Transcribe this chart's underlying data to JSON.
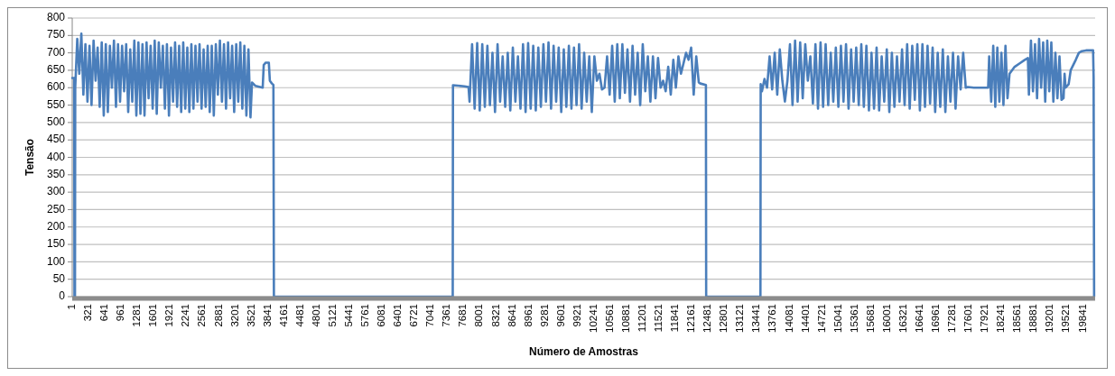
{
  "chart_data": {
    "type": "line",
    "xlabel": "Número de Amostras",
    "ylabel": "Tensão",
    "xlim": [
      1,
      20080
    ],
    "ylim": [
      0,
      800
    ],
    "yticks": [
      0,
      50,
      100,
      150,
      200,
      250,
      300,
      350,
      400,
      450,
      500,
      550,
      600,
      650,
      700,
      750,
      800
    ],
    "xticks": [
      1,
      321,
      641,
      961,
      1281,
      1601,
      1921,
      2241,
      2561,
      2881,
      3201,
      3521,
      3841,
      4161,
      4481,
      4801,
      5121,
      5441,
      5761,
      6081,
      6401,
      6721,
      7041,
      7361,
      7681,
      8001,
      8321,
      8641,
      8961,
      9281,
      9601,
      9921,
      10241,
      10561,
      10881,
      11201,
      11521,
      11841,
      12161,
      12481,
      12801,
      13121,
      13441,
      13761,
      14081,
      14401,
      14721,
      15041,
      15361,
      15681,
      16001,
      16321,
      16641,
      16961,
      17281,
      17601,
      17921,
      18241,
      18561,
      18881,
      19201,
      19521,
      19841
    ],
    "grid": "y",
    "series": [
      {
        "color": "#4a7ebb",
        "x": [
          1,
          40,
          45,
          55,
          60,
          100,
          140,
          180,
          220,
          260,
          300,
          340,
          380,
          420,
          460,
          500,
          540,
          580,
          620,
          660,
          700,
          740,
          780,
          820,
          860,
          900,
          940,
          980,
          1020,
          1060,
          1100,
          1140,
          1180,
          1220,
          1260,
          1300,
          1340,
          1380,
          1420,
          1460,
          1500,
          1540,
          1580,
          1620,
          1660,
          1700,
          1740,
          1780,
          1820,
          1860,
          1900,
          1940,
          1980,
          2020,
          2060,
          2100,
          2140,
          2180,
          2220,
          2260,
          2300,
          2340,
          2380,
          2420,
          2460,
          2500,
          2540,
          2580,
          2620,
          2660,
          2700,
          2740,
          2780,
          2820,
          2860,
          2900,
          2940,
          2980,
          3020,
          3060,
          3100,
          3140,
          3180,
          3220,
          3260,
          3300,
          3340,
          3380,
          3420,
          3460,
          3500,
          3530,
          3600,
          3740,
          3760,
          3800,
          3860,
          3880,
          3920,
          3950,
          3960,
          7470,
          7475,
          7700,
          7780,
          7800,
          7850,
          7900,
          7950,
          8000,
          8050,
          8100,
          8150,
          8200,
          8250,
          8300,
          8350,
          8400,
          8450,
          8500,
          8550,
          8600,
          8650,
          8700,
          8750,
          8800,
          8850,
          8900,
          8950,
          9000,
          9050,
          9100,
          9150,
          9200,
          9250,
          9300,
          9350,
          9400,
          9450,
          9500,
          9550,
          9600,
          9650,
          9700,
          9750,
          9800,
          9850,
          9900,
          9950,
          10000,
          10050,
          10100,
          10150,
          10200,
          10250,
          10300,
          10350,
          10400,
          10450,
          10500,
          10550,
          10600,
          10650,
          10700,
          10750,
          10800,
          10850,
          10900,
          10950,
          11000,
          11050,
          11100,
          11150,
          11200,
          11250,
          11300,
          11350,
          11400,
          11450,
          11500,
          11550,
          11600,
          11650,
          11700,
          11750,
          11800,
          11850,
          11900,
          11950,
          12000,
          12050,
          12100,
          12150,
          12200,
          12250,
          12300,
          12330,
          12440,
          12445,
          13510,
          13515,
          13540,
          13590,
          13640,
          13690,
          13740,
          13790,
          13840,
          13890,
          13940,
          13990,
          14040,
          14090,
          14140,
          14190,
          14240,
          14290,
          14340,
          14390,
          14440,
          14490,
          14540,
          14590,
          14640,
          14690,
          14740,
          14790,
          14840,
          14890,
          14940,
          14990,
          15040,
          15090,
          15140,
          15190,
          15240,
          15290,
          15340,
          15390,
          15440,
          15490,
          15540,
          15590,
          15640,
          15690,
          15740,
          15790,
          15840,
          15890,
          15940,
          15990,
          16040,
          16090,
          16140,
          16190,
          16240,
          16290,
          16340,
          16390,
          16440,
          16490,
          16540,
          16590,
          16640,
          16690,
          16740,
          16790,
          16840,
          16890,
          16940,
          16990,
          17040,
          17090,
          17140,
          17190,
          17240,
          17290,
          17340,
          17390,
          17440,
          17490,
          17540,
          17580,
          17700,
          17980,
          18000,
          18040,
          18080,
          18120,
          18160,
          18200,
          18240,
          18280,
          18320,
          18360,
          18400,
          18500,
          18600,
          18700,
          18760,
          18780,
          18820,
          18860,
          18900,
          18940,
          18980,
          19020,
          19060,
          19100,
          19140,
          19180,
          19220,
          19260,
          19300,
          19340,
          19380,
          19420,
          19460,
          19480,
          19500,
          19560,
          19600,
          19700,
          19760,
          19820,
          19900,
          20040,
          20050,
          20060
        ],
        "values": [
          628,
          628,
          0,
          0,
          600,
          740,
          640,
          755,
          580,
          725,
          560,
          720,
          550,
          735,
          620,
          715,
          545,
          730,
          520,
          725,
          530,
          720,
          600,
          735,
          545,
          725,
          560,
          720,
          590,
          725,
          530,
          710,
          560,
          735,
          520,
          730,
          525,
          725,
          520,
          730,
          570,
          720,
          540,
          735,
          525,
          730,
          600,
          720,
          540,
          725,
          520,
          715,
          560,
          730,
          545,
          720,
          530,
          730,
          540,
          715,
          530,
          725,
          540,
          720,
          560,
          725,
          540,
          710,
          545,
          720,
          530,
          720,
          520,
          725,
          580,
          735,
          560,
          725,
          540,
          730,
          570,
          720,
          530,
          725,
          560,
          730,
          540,
          720,
          520,
          710,
          515,
          615,
          605,
          600,
          665,
          672,
          672,
          620,
          612,
          608,
          0,
          0,
          607,
          604,
          602,
          560,
          725,
          540,
          728,
          535,
          725,
          545,
          720,
          550,
          700,
          530,
          725,
          560,
          690,
          545,
          700,
          535,
          715,
          560,
          690,
          540,
          725,
          530,
          728,
          540,
          720,
          535,
          715,
          545,
          725,
          560,
          730,
          540,
          720,
          560,
          715,
          530,
          710,
          545,
          720,
          540,
          715,
          550,
          725,
          540,
          700,
          560,
          690,
          530,
          690,
          620,
          640,
          595,
          600,
          690,
          580,
          720,
          560,
          725,
          570,
          725,
          585,
          710,
          560,
          720,
          580,
          700,
          550,
          725,
          590,
          690,
          560,
          690,
          570,
          685,
          600,
          620,
          590,
          660,
          580,
          680,
          600,
          690,
          640,
          670,
          700,
          680,
          715,
          580,
          690,
          615,
          612,
          608,
          0,
          0,
          610,
          590,
          625,
          600,
          690,
          595,
          700,
          580,
          710,
          620,
          560,
          620,
          725,
          550,
          735,
          560,
          730,
          570,
          725,
          620,
          690,
          555,
          725,
          540,
          730,
          545,
          725,
          550,
          700,
          560,
          715,
          545,
          720,
          560,
          725,
          540,
          710,
          560,
          715,
          550,
          725,
          545,
          720,
          535,
          700,
          540,
          715,
          535,
          690,
          560,
          710,
          530,
          700,
          545,
          690,
          560,
          710,
          550,
          725,
          540,
          720,
          565,
          725,
          535,
          725,
          545,
          720,
          555,
          715,
          530,
          700,
          545,
          710,
          530,
          690,
          560,
          700,
          540,
          690,
          595,
          700,
          600,
          602,
          600,
          600,
          690,
          560,
          720,
          545,
          715,
          560,
          700,
          550,
          720,
          570,
          640,
          660,
          670,
          680,
          685,
          580,
          735,
          590,
          725,
          570,
          740,
          600,
          730,
          560,
          735,
          590,
          730,
          560,
          700,
          570,
          690,
          565,
          570,
          640,
          600,
          610,
          650,
          680,
          700,
          705,
          707,
          707,
          630,
          0
        ]
      }
    ]
  }
}
